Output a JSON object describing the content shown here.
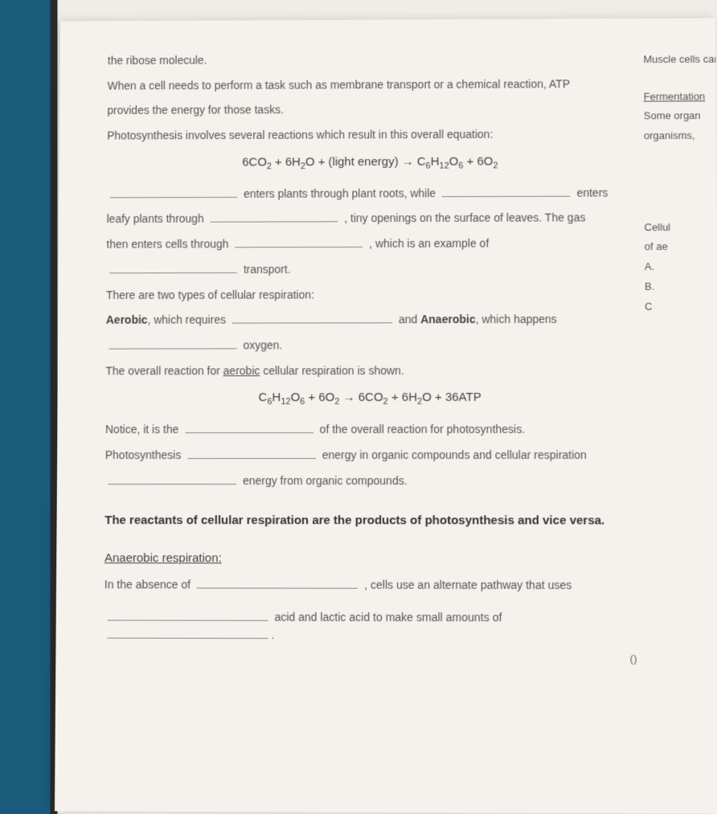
{
  "para1_l1": "the ribose molecule.",
  "para1_l2": "When a cell needs to perform a task such as membrane transport or a chemical reaction, ATP",
  "para1_l3": "provides the energy for those tasks.",
  "para1_l4": "Photosynthesis involves several reactions which result in this overall equation:",
  "eq1_html": "6CO<sub>2</sub> + 6H<sub>2</sub>O + (light energy) → C<sub>6</sub>H<sub>12</sub>O<sub>6</sub> + 6O<sub>2</sub>",
  "fill1_a": "enters plants through plant roots, while",
  "fill1_b": "enters",
  "fill2_a": "leafy plants through",
  "fill2_b": ", tiny openings on the surface of leaves. The gas",
  "fill3_a": "then enters cells through",
  "fill3_b": ", which is an example of",
  "fill4": "transport.",
  "resp1": "There are two types of cellular respiration:",
  "resp2_a": "Aerobic",
  "resp2_b": ", which requires",
  "resp2_c": "and",
  "resp2_d": "Anaerobic",
  "resp2_e": ", which happens",
  "resp3": "oxygen.",
  "overall_a": "The overall reaction for",
  "overall_b": "aerobic",
  "overall_c": "cellular respiration is shown.",
  "eq2_html": "C<sub>6</sub>H<sub>12</sub>O<sub>6</sub> + 6O<sub>2</sub> → 6CO<sub>2</sub> + 6H<sub>2</sub>O + 36ATP",
  "notice_a": "Notice, it is the",
  "notice_b": "of the overall reaction for photosynthesis.",
  "photo_a": "Photosynthesis",
  "photo_b": "energy in organic compounds and cellular respiration",
  "photo_c": "energy from organic compounds.",
  "statement": "The reactants of cellular respiration are the products of photosynthesis and vice versa.",
  "anaerobic_head": "Anaerobic respiration:",
  "absence_a": "In the absence of",
  "absence_b": ", cells use an alternate pathway that uses",
  "acid_a": "acid and lactic acid to make small amounts of",
  "rightcut": {
    "r1": "Muscle cells car",
    "r2": "Fermentation",
    "r3": "Some organ",
    "r4": "organisms,",
    "r5": "Cellul",
    "r6": "of ae",
    "r7": "A.",
    "r8": "B.",
    "r9": "C"
  },
  "paren": "()"
}
